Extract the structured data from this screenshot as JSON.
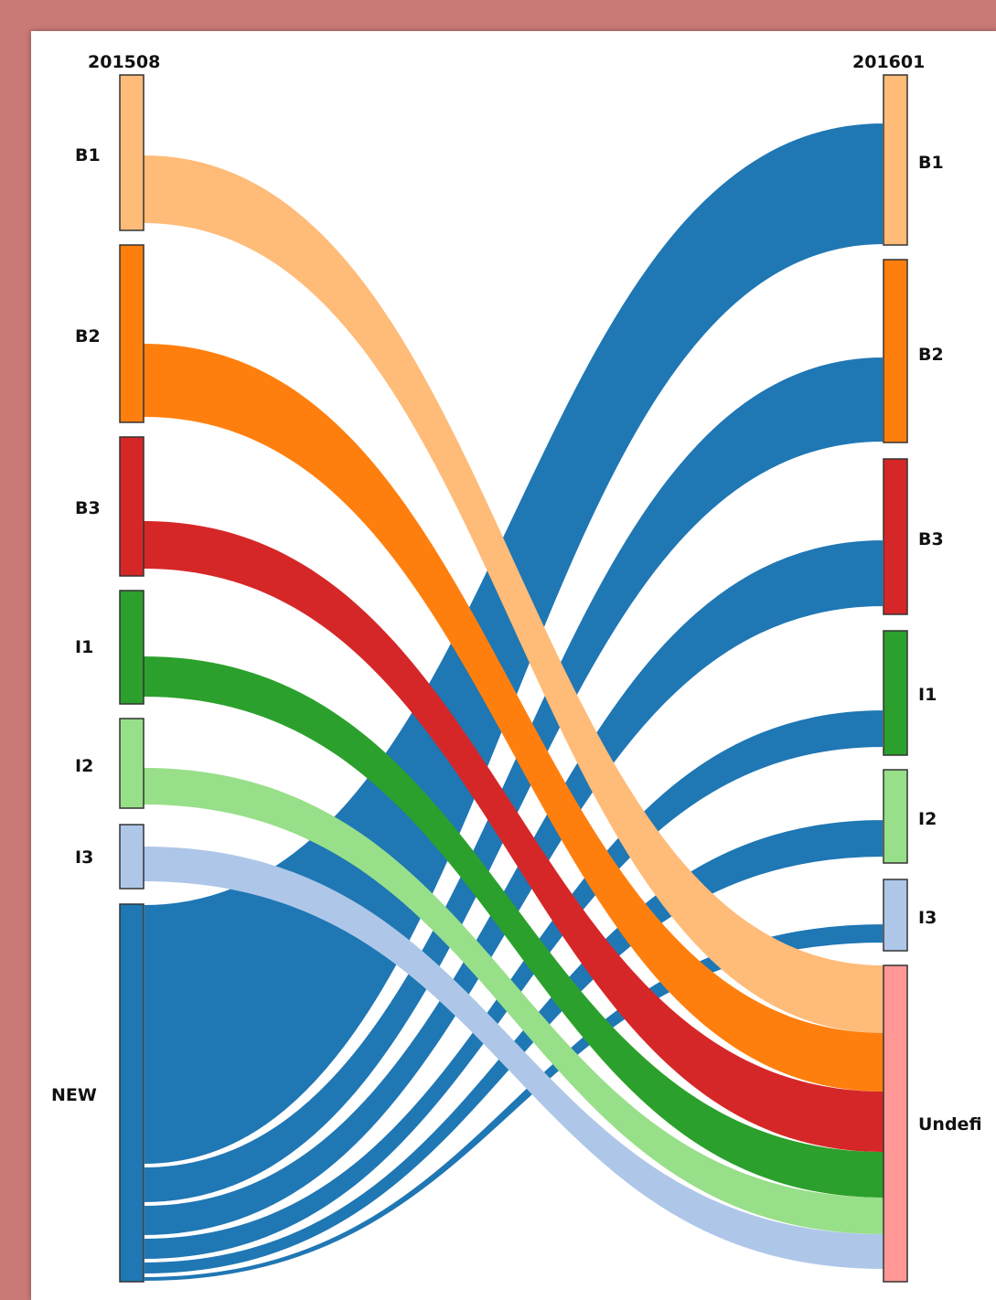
{
  "diagram": {
    "type": "sankey",
    "left_column": {
      "header": "201508",
      "nodes": [
        {
          "id": "L-B1",
          "label": "B1",
          "color": "#ffbb78"
        },
        {
          "id": "L-B2",
          "label": "B2",
          "color": "#ff7f0e"
        },
        {
          "id": "L-B3",
          "label": "B3",
          "color": "#d62728"
        },
        {
          "id": "L-I1",
          "label": "I1",
          "color": "#2ca02c"
        },
        {
          "id": "L-I2",
          "label": "I2",
          "color": "#98df8a"
        },
        {
          "id": "L-I3",
          "label": "I3",
          "color": "#aec7e8"
        },
        {
          "id": "L-NEW",
          "label": "NEW",
          "color": "#1f77b4"
        }
      ]
    },
    "right_column": {
      "header": "201601",
      "nodes": [
        {
          "id": "R-B1",
          "label": "B1",
          "color": "#ffbb78"
        },
        {
          "id": "R-B2",
          "label": "B2",
          "color": "#ff7f0e"
        },
        {
          "id": "R-B3",
          "label": "B3",
          "color": "#d62728"
        },
        {
          "id": "R-I1",
          "label": "I1",
          "color": "#2ca02c"
        },
        {
          "id": "R-I2",
          "label": "I2",
          "color": "#98df8a"
        },
        {
          "id": "R-I3",
          "label": "I3",
          "color": "#aec7e8"
        },
        {
          "id": "R-U",
          "label": "Undefi",
          "color": "#ff9896"
        }
      ]
    },
    "flows": [
      {
        "from": "L-B1",
        "to": "R-U",
        "color": "#ffbb78"
      },
      {
        "from": "L-B2",
        "to": "R-U",
        "color": "#ff7f0e"
      },
      {
        "from": "L-B3",
        "to": "R-U",
        "color": "#d62728"
      },
      {
        "from": "L-I1",
        "to": "R-U",
        "color": "#2ca02c"
      },
      {
        "from": "L-I2",
        "to": "R-U",
        "color": "#98df8a"
      },
      {
        "from": "L-I3",
        "to": "R-U",
        "color": "#aec7e8"
      },
      {
        "from": "L-NEW",
        "to": "R-B1",
        "color": "#1f77b4"
      },
      {
        "from": "L-NEW",
        "to": "R-B2",
        "color": "#1f77b4"
      },
      {
        "from": "L-NEW",
        "to": "R-B3",
        "color": "#1f77b4"
      },
      {
        "from": "L-NEW",
        "to": "R-I1",
        "color": "#1f77b4"
      },
      {
        "from": "L-NEW",
        "to": "R-I2",
        "color": "#1f77b4"
      },
      {
        "from": "L-NEW",
        "to": "R-I3",
        "color": "#1f77b4"
      }
    ]
  }
}
